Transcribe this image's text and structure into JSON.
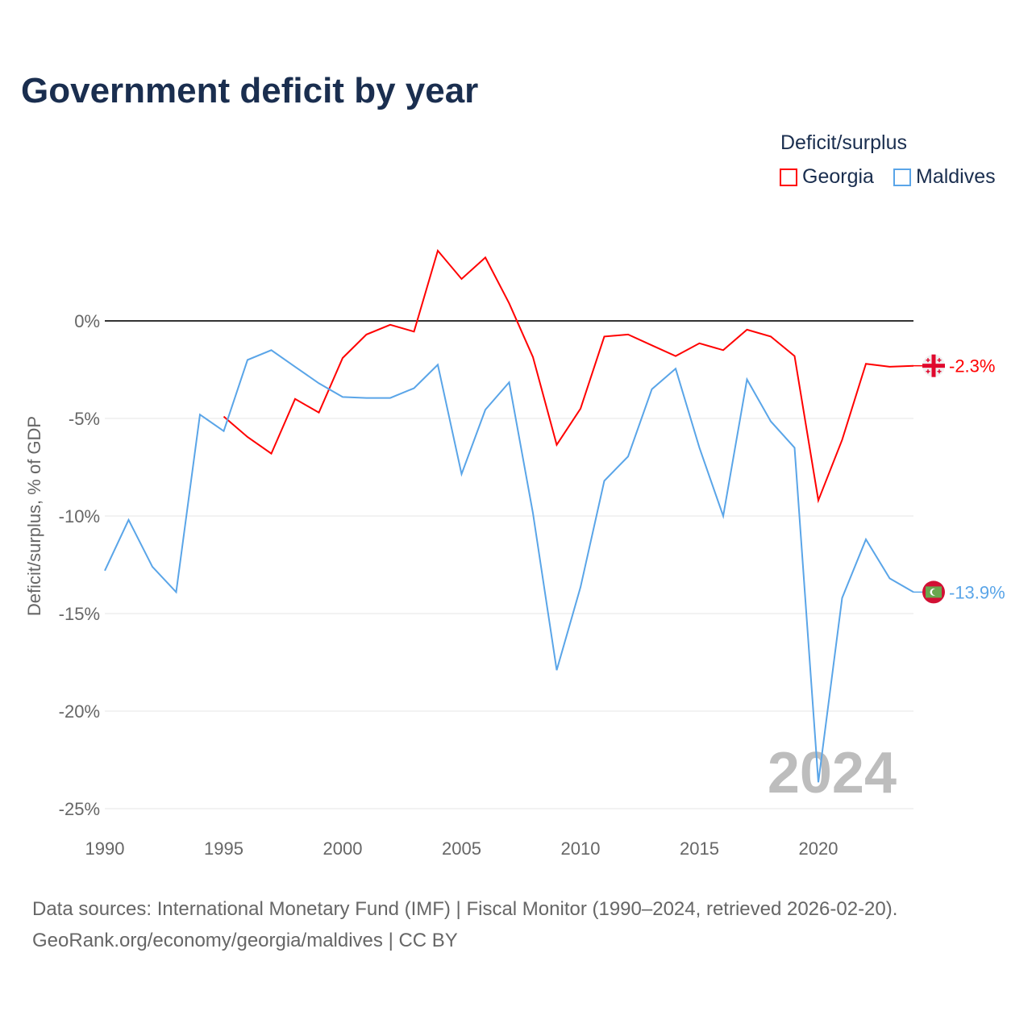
{
  "title": "Government deficit by year",
  "legend": {
    "title": "Deficit/surplus",
    "items": [
      {
        "label": "Georgia",
        "color": "#ff0000"
      },
      {
        "label": "Maldives",
        "color": "#5aa5e8"
      }
    ]
  },
  "source": {
    "line1": "Data sources: International Monetary Fund (IMF) | Fiscal Monitor (1990–2024, retrieved 2026-02-20).",
    "line2": "GeoRank.org/economy/georgia/maldives | CC BY"
  },
  "chart_data": {
    "type": "line",
    "title": "Government deficit by year",
    "xlabel": "",
    "ylabel": "Deficit/surplus, % of GDP",
    "xlim": [
      1990,
      2024
    ],
    "ylim": [
      -25,
      5
    ],
    "xticks": [
      1990,
      1995,
      2000,
      2005,
      2010,
      2015,
      2020
    ],
    "xtick_labels": [
      "1990",
      "1995",
      "2000",
      "2005",
      "2010",
      "2015",
      "2020"
    ],
    "yticks": [
      0,
      -5,
      -10,
      -15,
      -20,
      -25
    ],
    "ytick_labels": [
      "0%",
      "-5%",
      "-10%",
      "-15%",
      "-20%",
      "-25%"
    ],
    "watermark": "2024",
    "series": [
      {
        "name": "Georgia",
        "color": "#ff0000",
        "end_label": "-2.3%",
        "x": [
          1995,
          1996,
          1997,
          1998,
          1999,
          2000,
          2001,
          2002,
          2003,
          2004,
          2005,
          2006,
          2007,
          2008,
          2009,
          2010,
          2011,
          2012,
          2013,
          2014,
          2015,
          2016,
          2017,
          2018,
          2019,
          2020,
          2021,
          2022,
          2023,
          2024
        ],
        "values": [
          -4.9,
          -5.95,
          -6.8,
          -4.0,
          -4.7,
          -1.9,
          -0.7,
          -0.2,
          -0.55,
          3.6,
          2.15,
          3.25,
          0.9,
          -1.85,
          -6.35,
          -4.5,
          -0.8,
          -0.7,
          -1.25,
          -1.8,
          -1.15,
          -1.5,
          -0.45,
          -0.8,
          -1.8,
          -9.2,
          -6.1,
          -2.2,
          -2.35,
          -2.3
        ]
      },
      {
        "name": "Maldives",
        "color": "#5aa5e8",
        "end_label": "-13.9%",
        "x": [
          1990,
          1991,
          1992,
          1993,
          1994,
          1995,
          1996,
          1997,
          1998,
          1999,
          2000,
          2001,
          2002,
          2003,
          2004,
          2005,
          2006,
          2007,
          2008,
          2009,
          2010,
          2011,
          2012,
          2013,
          2014,
          2015,
          2016,
          2017,
          2018,
          2019,
          2020,
          2021,
          2022,
          2023,
          2024
        ],
        "values": [
          -12.8,
          -10.2,
          -12.6,
          -13.9,
          -4.8,
          -5.65,
          -2.0,
          -1.5,
          -2.35,
          -3.2,
          -3.9,
          -3.95,
          -3.95,
          -3.45,
          -2.25,
          -7.85,
          -4.55,
          -3.15,
          -9.85,
          -17.9,
          -13.65,
          -8.2,
          -6.95,
          -3.5,
          -2.45,
          -6.5,
          -10.0,
          -3.0,
          -5.15,
          -6.5,
          -23.65,
          -14.2,
          -11.2,
          -13.2,
          -13.9
        ]
      }
    ]
  }
}
